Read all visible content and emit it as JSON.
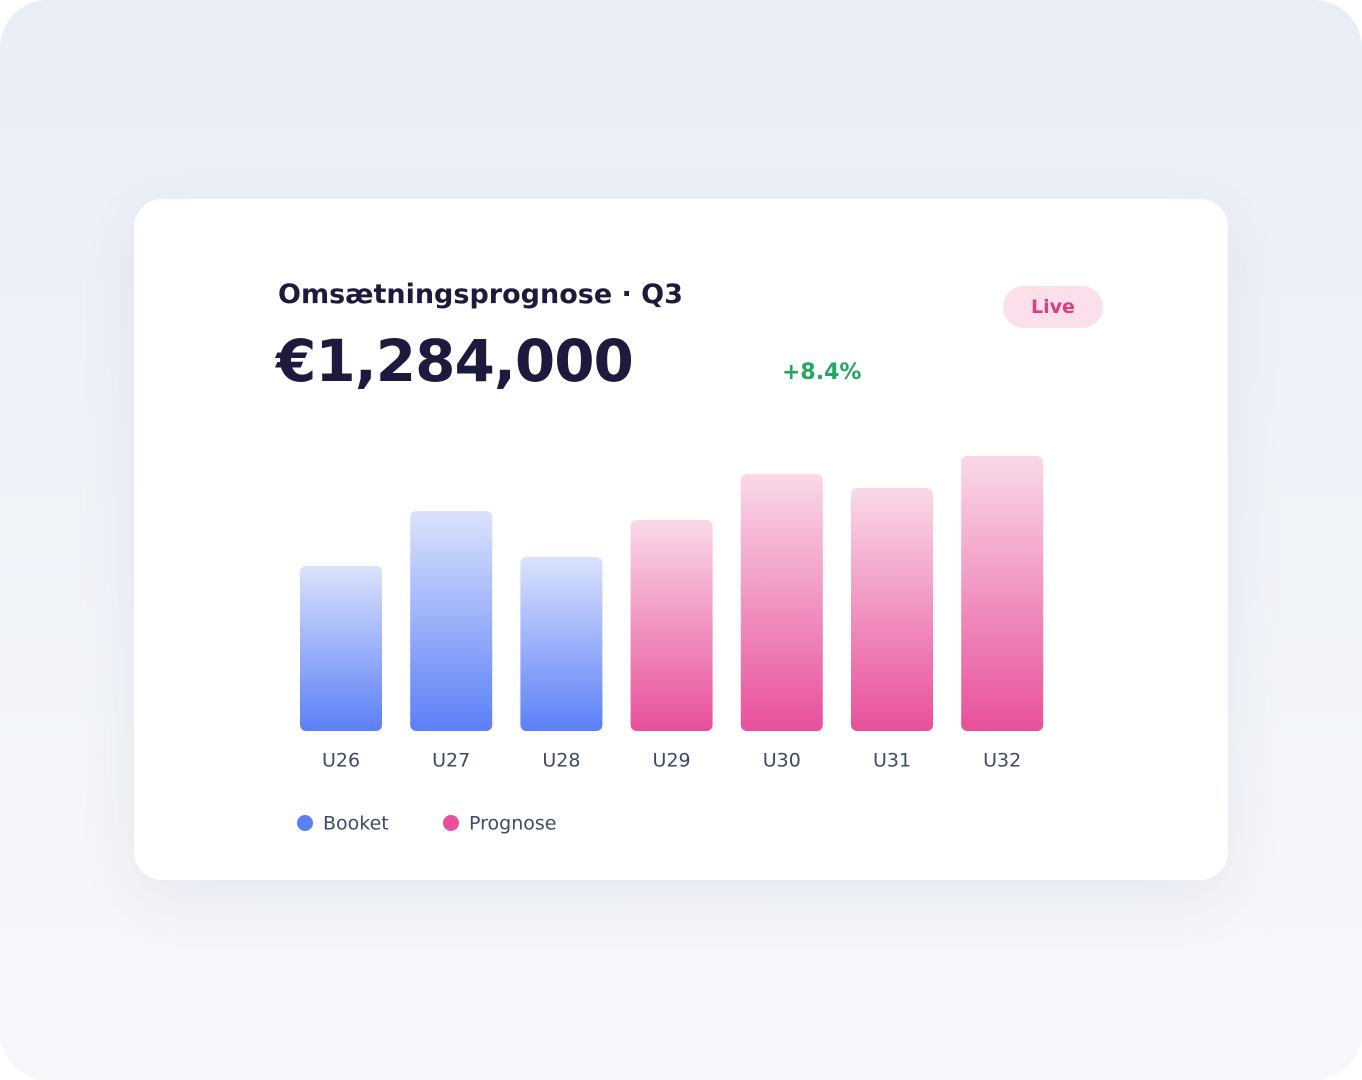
{
  "card": {
    "title": "Omsætningsprognose · Q3",
    "headline": "€1,284,000",
    "change": "+8.4%",
    "badge": "Live"
  },
  "chart_data": {
    "type": "bar",
    "categories": [
      "U26",
      "U27",
      "U28",
      "U29",
      "U30",
      "U31",
      "U32"
    ],
    "series": [
      {
        "name": "Booket",
        "color": "#5b7ff7",
        "values": [
          165,
          220,
          174,
          null,
          null,
          null,
          null
        ]
      },
      {
        "name": "Prognose",
        "color": "#e8509a",
        "values": [
          null,
          null,
          null,
          211,
          257,
          243,
          275
        ]
      }
    ],
    "ylim": [
      0,
      300
    ],
    "grid": false
  }
}
